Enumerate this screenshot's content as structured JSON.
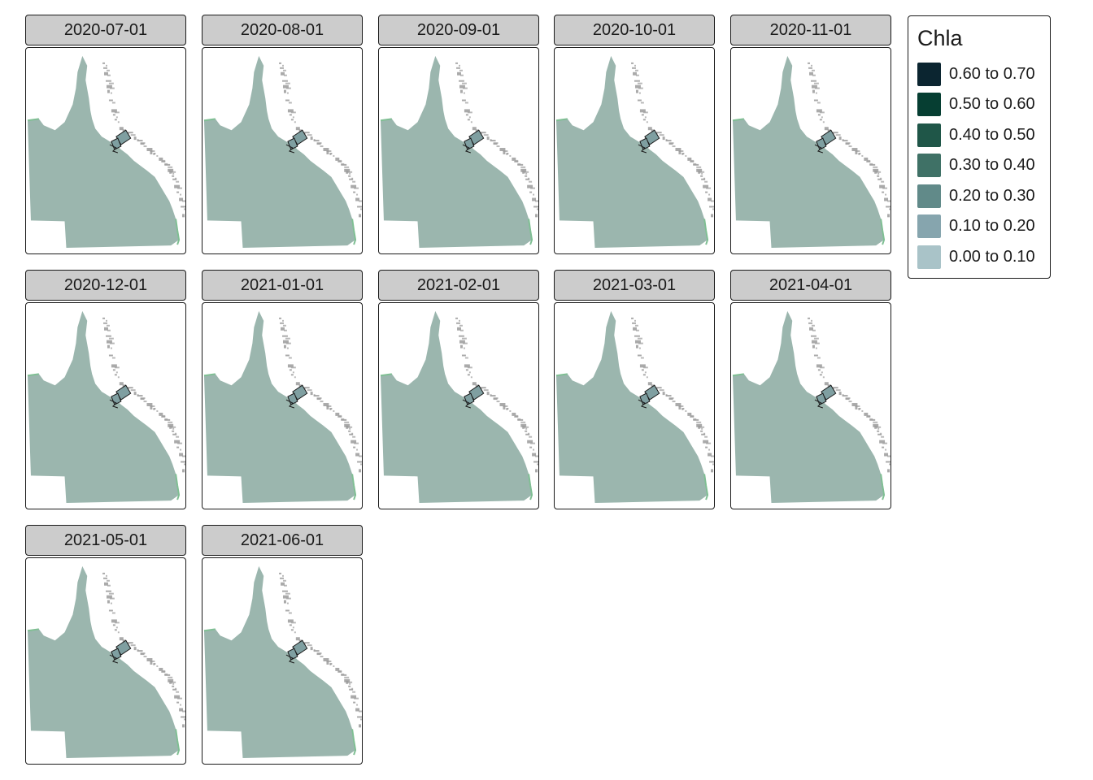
{
  "panels": [
    {
      "date": "2020-07-01"
    },
    {
      "date": "2020-08-01"
    },
    {
      "date": "2020-09-01"
    },
    {
      "date": "2020-10-01"
    },
    {
      "date": "2020-11-01"
    },
    {
      "date": "2020-12-01"
    },
    {
      "date": "2021-01-01"
    },
    {
      "date": "2021-02-01"
    },
    {
      "date": "2021-03-01"
    },
    {
      "date": "2021-04-01"
    },
    {
      "date": "2021-05-01"
    },
    {
      "date": "2021-06-01"
    }
  ],
  "legend": {
    "title": "Chla",
    "items": [
      {
        "label": "0.60 to 0.70",
        "color": "#0b2530"
      },
      {
        "label": "0.50 to 0.60",
        "color": "#063e32"
      },
      {
        "label": "0.40 to 0.50",
        "color": "#1f5648"
      },
      {
        "label": "0.30 to 0.40",
        "color": "#3f7166"
      },
      {
        "label": "0.20 to 0.30",
        "color": "#618a89"
      },
      {
        "label": "0.10 to 0.20",
        "color": "#86a5ae"
      },
      {
        "label": "0.00 to 0.10",
        "color": "#a9c3c8"
      }
    ]
  },
  "map_colors": {
    "land": "#9bb6ae",
    "reef": "#9b9b9b",
    "coast": "#7fbf93",
    "region_outline": "#1a1a1a",
    "region_fill": "#7f9fa1"
  }
}
